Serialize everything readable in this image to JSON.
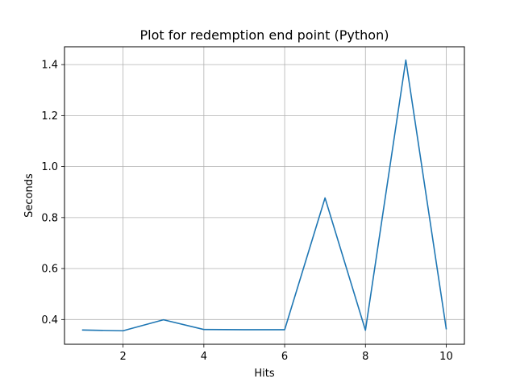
{
  "chart_data": {
    "type": "line",
    "title": "Plot for redemption end point (Python)",
    "xlabel": "Hits",
    "ylabel": "Seconds",
    "xlim": [
      0.55,
      10.45
    ],
    "ylim": [
      0.303,
      1.47
    ],
    "grid": true,
    "legend": "none",
    "x_ticks": [
      2,
      4,
      6,
      8,
      10
    ],
    "x_tick_labels": [
      "2",
      "4",
      "6",
      "8",
      "10"
    ],
    "y_ticks": [
      0.4,
      0.6,
      0.8,
      1.0,
      1.2,
      1.4
    ],
    "y_tick_labels": [
      "0.4",
      "0.6",
      "0.8",
      "1.0",
      "1.2",
      "1.4"
    ],
    "series": [
      {
        "name": "Seconds",
        "color": "#1f77b4",
        "x": [
          1,
          2,
          3,
          4,
          5,
          6,
          7,
          8,
          9,
          10
        ],
        "values": [
          0.359,
          0.356,
          0.399,
          0.361,
          0.36,
          0.36,
          0.877,
          0.358,
          1.418,
          0.364
        ]
      }
    ]
  }
}
